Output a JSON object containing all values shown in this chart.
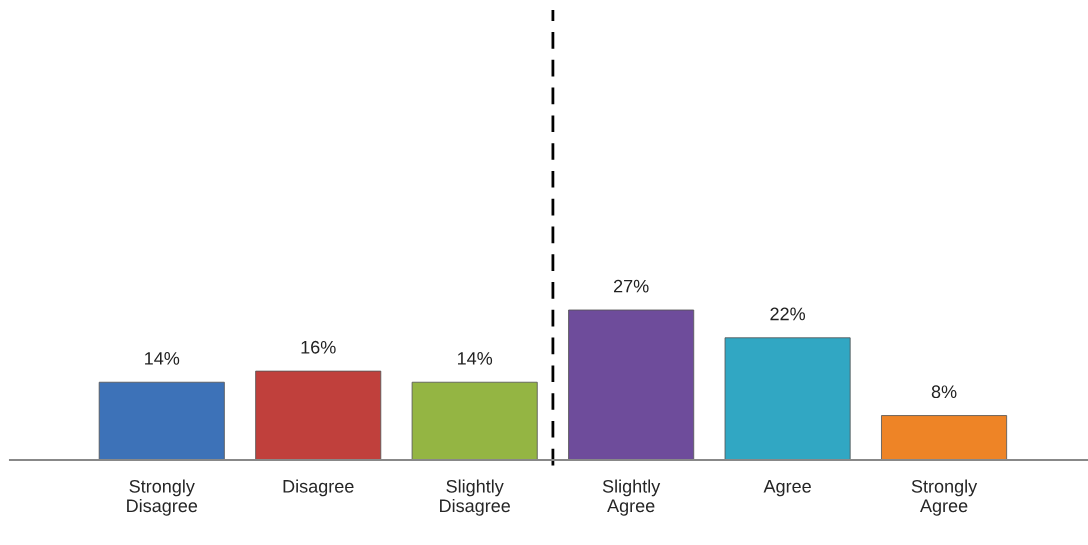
{
  "chart_data": {
    "type": "bar",
    "categories": [
      "Strongly\nDisagree",
      "Disagree",
      "Slightly\nDisagree",
      "Slightly\nAgree",
      "Agree",
      "Strongly\nAgree"
    ],
    "values": [
      14,
      16,
      14,
      27,
      22,
      8
    ],
    "colors": [
      "#3d72b8",
      "#c0403c",
      "#94b543",
      "#6e4c9b",
      "#31a7c3",
      "#ee8426"
    ],
    "data_labels": true,
    "value_labels": [
      "14%",
      "16%",
      "14%",
      "27%",
      "22%",
      "8%"
    ],
    "ylim": [
      0,
      81
    ],
    "tick_labels": "x",
    "grid": false,
    "legend": false
  }
}
